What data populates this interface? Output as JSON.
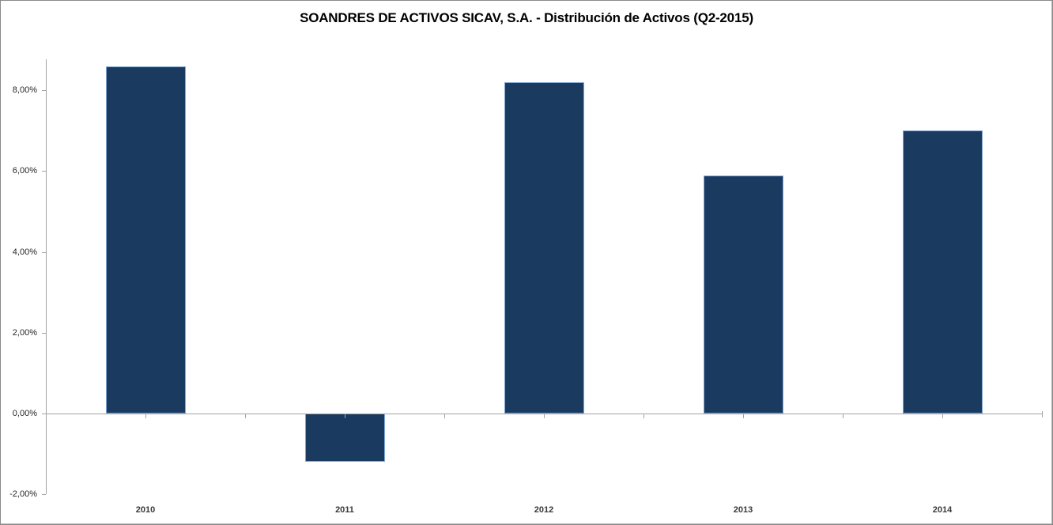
{
  "chart_data": {
    "type": "bar",
    "title": "SOANDRES DE ACTIVOS SICAV, S.A. - Distribución de Activos (Q2-2015)",
    "categories": [
      "2010",
      "2011",
      "2012",
      "2013",
      "2014"
    ],
    "values": [
      8.6,
      -1.2,
      8.2,
      5.9,
      7.0
    ],
    "series_name": "Distribución de Activos",
    "xlabel": "",
    "ylabel": "",
    "ylim": [
      -2,
      8.77
    ],
    "y_ticks": [
      {
        "value": 8,
        "label": "8,00%"
      },
      {
        "value": 6,
        "label": "6,00%"
      },
      {
        "value": 4,
        "label": "4,00%"
      },
      {
        "value": 2,
        "label": "2,00%"
      },
      {
        "value": 0,
        "label": "0,00%"
      },
      {
        "value": -2,
        "label": "-2,00%"
      }
    ],
    "grid": false,
    "legend_position": "none",
    "colors": {
      "bar_fill": "#1b3a5f",
      "bar_border": "#7fa7d4",
      "axis_line": "#a3a3a3",
      "tick_label": "#262626",
      "title_text": "#000000",
      "background": "#ffffff",
      "frame_border": "#8a8a8a"
    }
  }
}
